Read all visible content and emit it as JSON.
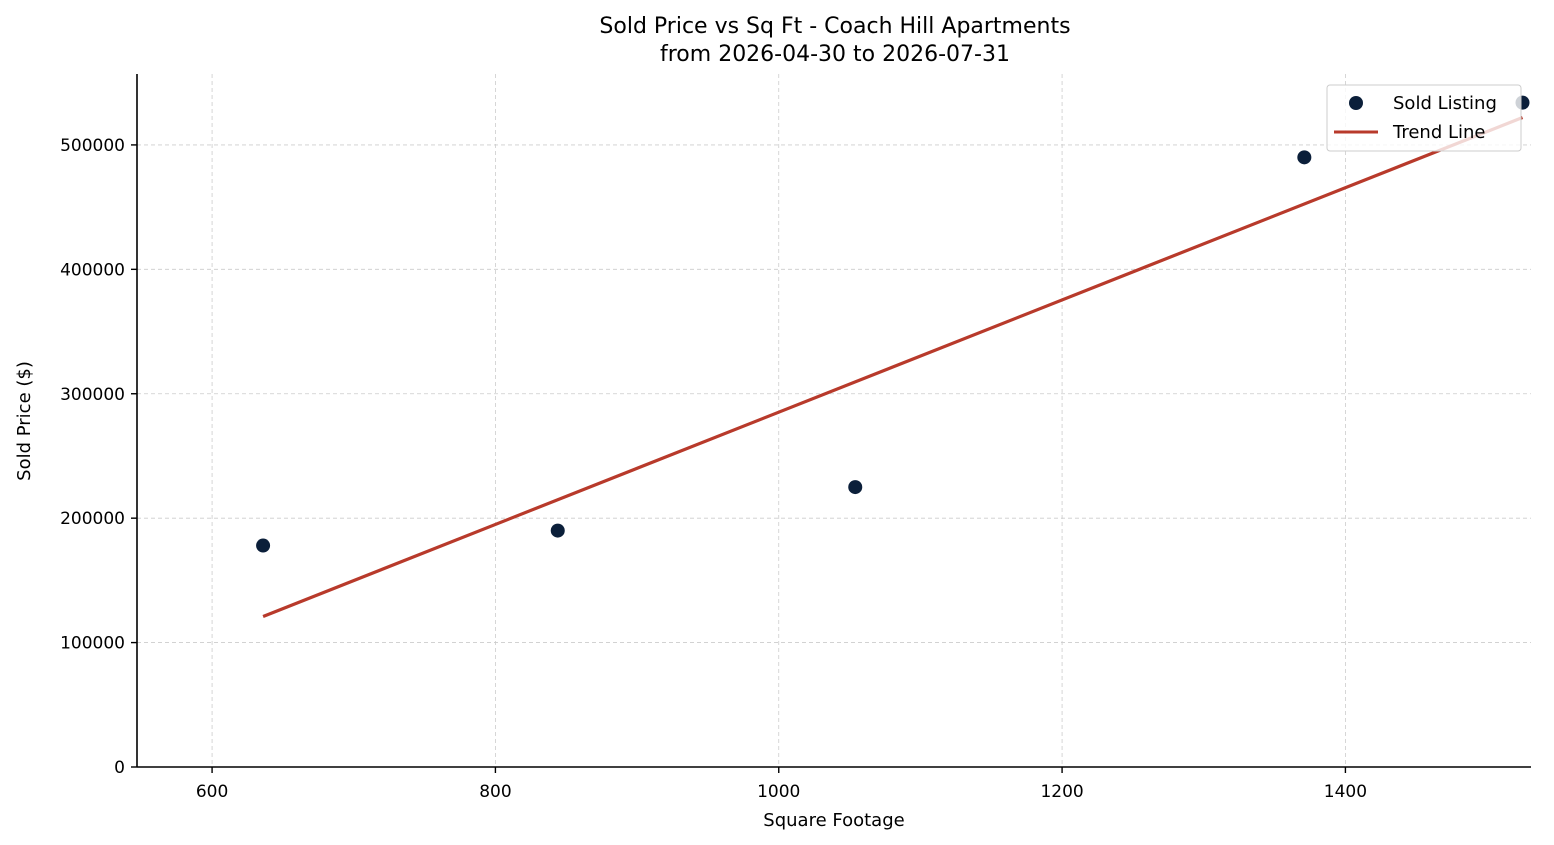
{
  "chart_data": {
    "type": "scatter",
    "title": "Sold Price vs Sq Ft - Coach Hill Apartments",
    "subtitle": "from 2026-04-30 to 2026-07-31",
    "xlabel": "Square Footage",
    "ylabel": "Sold Price ($)",
    "xlim": [
      547,
      1531
    ],
    "ylim": [
      0,
      557000
    ],
    "xticks": [
      600,
      800,
      1000,
      1200,
      1400,
      1600
    ],
    "yticks": [
      0,
      100000,
      200000,
      300000,
      400000,
      500000
    ],
    "grid": true,
    "legend": "top-right",
    "series": [
      {
        "name": "Sold Listing",
        "kind": "scatter",
        "color": "#0b1f3a",
        "points": [
          {
            "x": 636,
            "y": 178000
          },
          {
            "x": 844,
            "y": 190000
          },
          {
            "x": 1054,
            "y": 225000
          },
          {
            "x": 1371,
            "y": 490000
          },
          {
            "x": 1525,
            "y": 534000
          }
        ]
      },
      {
        "name": "Trend Line",
        "kind": "line",
        "color": "#b83a2b",
        "points": [
          {
            "x": 636,
            "y": 121000
          },
          {
            "x": 1525,
            "y": 522000
          }
        ]
      }
    ]
  }
}
